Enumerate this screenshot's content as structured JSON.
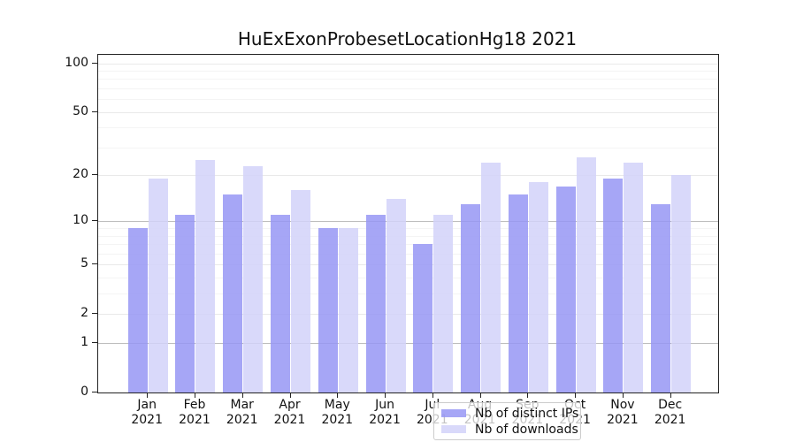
{
  "title": "HuExExonProbesetLocationHg18 2021",
  "chart_data": {
    "type": "bar",
    "title": "HuExExonProbesetLocationHg18 2021",
    "categories": [
      "Jan 2021",
      "Feb 2021",
      "Mar 2021",
      "Apr 2021",
      "May 2021",
      "Jun 2021",
      "Jul 2021",
      "Aug 2021",
      "Sep 2021",
      "Oct 2021",
      "Nov 2021",
      "Dec 2021"
    ],
    "series": [
      {
        "name": "Nb of distinct IPs",
        "color": "rgba(150,150,244,0.85)",
        "values": [
          9,
          11,
          15,
          11,
          9,
          11,
          7,
          13,
          15,
          17,
          19,
          13
        ]
      },
      {
        "name": "Nb of downloads",
        "color": "rgba(210,210,249,0.85)",
        "values": [
          19,
          25,
          23,
          16,
          9,
          14,
          11,
          24,
          18,
          26,
          24,
          20
        ]
      }
    ],
    "xlabel": "",
    "ylabel": "",
    "yscale": "log1p",
    "yticks": [
      0,
      1,
      2,
      5,
      10,
      20,
      50,
      100
    ],
    "minor_yticks": [
      3,
      4,
      6,
      7,
      8,
      9,
      30,
      40,
      60,
      70,
      80,
      90
    ],
    "ylim": [
      0,
      113
    ],
    "grid": true,
    "legend_position": "lower center"
  },
  "legend": {
    "items": [
      {
        "label": "Nb of distinct IPs"
      },
      {
        "label": "Nb of downloads"
      }
    ]
  },
  "colors": {
    "ip_bar": "rgba(150,150,244,0.85)",
    "download_bar": "rgba(210,210,249,0.85)",
    "grid_major_strong": "#bdbdbd",
    "grid_major": "#e9e9e9",
    "grid_minor": "#f4f4f4",
    "axis": "#222222"
  }
}
